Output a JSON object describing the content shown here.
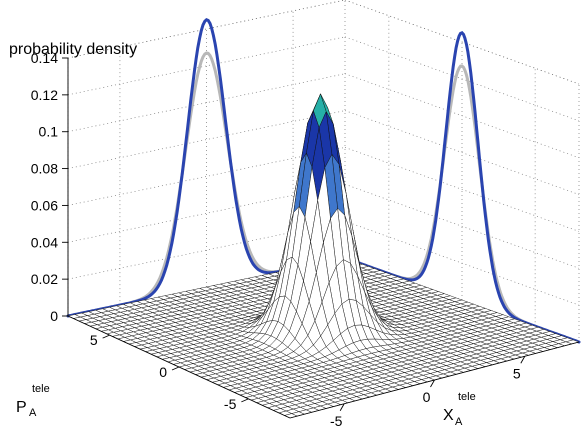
{
  "chart_data": {
    "type": "surface3d",
    "zlabel": "probability density",
    "xlabel": {
      "main": "X",
      "sub": "A",
      "sup": "tele"
    },
    "ylabel": {
      "main": "P",
      "sub": "A",
      "sup": "tele"
    },
    "zticks": [
      "0",
      "0.02",
      "0.04",
      "0.06",
      "0.08",
      "0.1",
      "0.12",
      "0.14"
    ],
    "zlim": [
      0,
      0.14
    ],
    "xticks": [
      "-5",
      "0",
      "5"
    ],
    "yticks": [
      "5",
      "0",
      "-5"
    ],
    "xlim": [
      -8,
      8
    ],
    "ylim": [
      -8,
      8
    ],
    "surface": {
      "peak": 0.13,
      "sigma": 1.1,
      "grid_n": 41
    },
    "projections": [
      {
        "name": "",
        "peak": 0.145,
        "sigma": 1.1,
        "color": "#2a44b0"
      },
      {
        "name": "",
        "peak": 0.127,
        "sigma": 1.2,
        "color": "#b8b8b8"
      }
    ],
    "grid": true,
    "colors": {
      "blue": "#2a44b0",
      "gray": "#b8b8b8"
    }
  }
}
